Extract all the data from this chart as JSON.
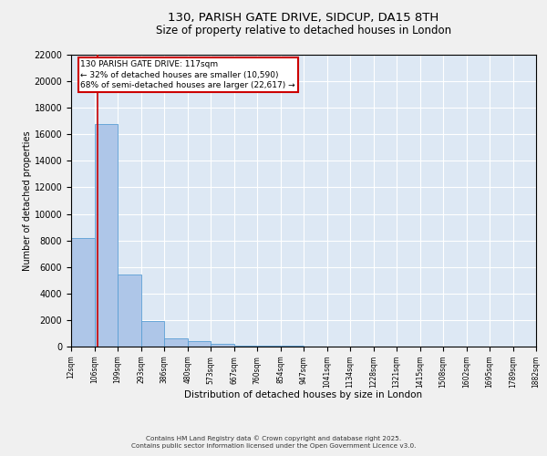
{
  "title_line1": "130, PARISH GATE DRIVE, SIDCUP, DA15 8TH",
  "title_line2": "Size of property relative to detached houses in London",
  "xlabel": "Distribution of detached houses by size in London",
  "ylabel": "Number of detached properties",
  "annotation_title": "130 PARISH GATE DRIVE: 117sqm",
  "annotation_line1": "← 32% of detached houses are smaller (10,590)",
  "annotation_line2": "68% of semi-detached houses are larger (22,617) →",
  "footer_line1": "Contains HM Land Registry data © Crown copyright and database right 2025.",
  "footer_line2": "Contains public sector information licensed under the Open Government Licence v3.0.",
  "property_size": 117,
  "bar_edges": [
    12,
    106,
    199,
    293,
    386,
    480,
    573,
    667,
    760,
    854,
    947,
    1041,
    1134,
    1228,
    1321,
    1415,
    1508,
    1602,
    1695,
    1789,
    1882
  ],
  "bar_heights": [
    8150,
    16800,
    5450,
    1900,
    650,
    380,
    200,
    90,
    60,
    40,
    30,
    20,
    15,
    10,
    8,
    6,
    4,
    3,
    2,
    1
  ],
  "bar_color": "#aec6e8",
  "bar_edge_color": "#5a9fd4",
  "red_line_color": "#cc0000",
  "annotation_box_color": "#cc0000",
  "background_color": "#dde8f4",
  "grid_color": "#ffffff",
  "fig_background": "#f0f0f0",
  "ylim": [
    0,
    22000
  ],
  "yticks": [
    0,
    2000,
    4000,
    6000,
    8000,
    10000,
    12000,
    14000,
    16000,
    18000,
    20000,
    22000
  ]
}
